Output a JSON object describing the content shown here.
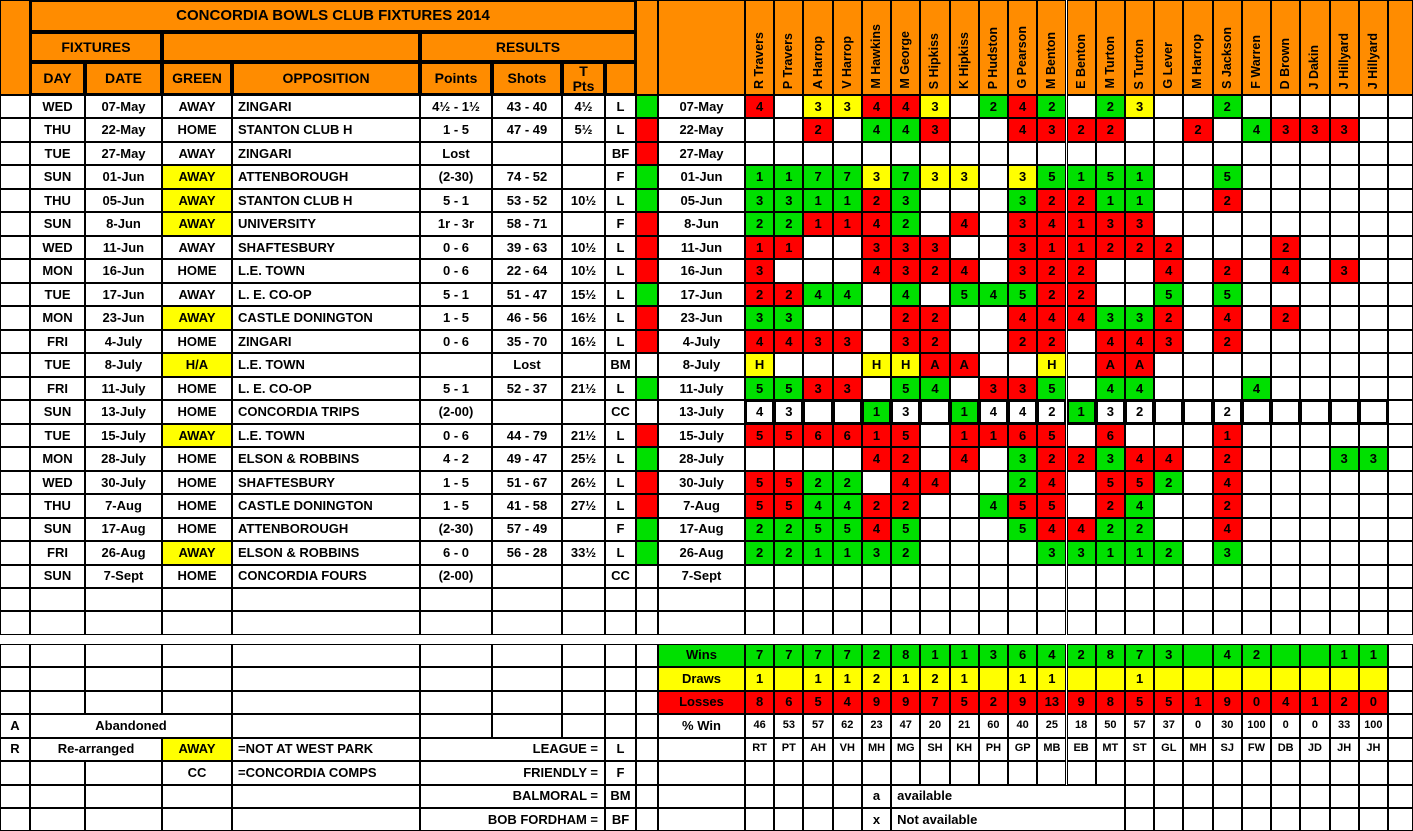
{
  "title": "CONCORDIA BOWLS CLUB FIXTURES  2014",
  "colors": {
    "orange": "#FF8C00",
    "green": "#00E000",
    "red": "#FF0000",
    "yellow": "#FFFF00",
    "white": "#FFFFFF"
  },
  "header": {
    "fixtures": "FIXTURES",
    "results": "RESULTS",
    "day": "DAY",
    "date": "DATE",
    "green": "GREEN",
    "opposition": "OPPOSITION",
    "points": "Points",
    "shots": "Shots",
    "t": "T",
    "pts": "Pts"
  },
  "players": [
    {
      "name": "R Travers",
      "initials": "RT",
      "wins": "7",
      "draws": "1",
      "losses": "8",
      "pct": "46"
    },
    {
      "name": "P Travers",
      "initials": "PT",
      "wins": "7",
      "draws": "",
      "losses": "6",
      "pct": "53"
    },
    {
      "name": "A Harrop",
      "initials": "AH",
      "wins": "7",
      "draws": "1",
      "losses": "5",
      "pct": "57"
    },
    {
      "name": "V Harrop",
      "initials": "VH",
      "wins": "7",
      "draws": "1",
      "losses": "4",
      "pct": "62"
    },
    {
      "name": "M Hawkins",
      "initials": "MH",
      "wins": "2",
      "draws": "2",
      "losses": "9",
      "pct": "23"
    },
    {
      "name": "M George",
      "initials": "MG",
      "wins": "8",
      "draws": "1",
      "losses": "9",
      "pct": "47"
    },
    {
      "name": "S Hipkiss",
      "initials": "SH",
      "wins": "1",
      "draws": "2",
      "losses": "7",
      "pct": "20"
    },
    {
      "name": "K Hipkiss",
      "initials": "KH",
      "wins": "1",
      "draws": "1",
      "losses": "5",
      "pct": "21"
    },
    {
      "name": "P Hudston",
      "initials": "PH",
      "wins": "3",
      "draws": "",
      "losses": "2",
      "pct": "60"
    },
    {
      "name": "G Pearson",
      "initials": "GP",
      "wins": "6",
      "draws": "1",
      "losses": "9",
      "pct": "40"
    },
    {
      "name": "M Benton",
      "initials": "MB",
      "wins": "4",
      "draws": "1",
      "losses": "13",
      "pct": "25"
    },
    {
      "name": "E Benton",
      "initials": "EB",
      "wins": "2",
      "draws": "",
      "losses": "9",
      "pct": "18"
    },
    {
      "name": "M Turton",
      "initials": "MT",
      "wins": "8",
      "draws": "",
      "losses": "8",
      "pct": "50"
    },
    {
      "name": "S Turton",
      "initials": "ST",
      "wins": "7",
      "draws": "1",
      "losses": "5",
      "pct": "57"
    },
    {
      "name": "G Lever",
      "initials": "GL",
      "wins": "3",
      "draws": "",
      "losses": "5",
      "pct": "37"
    },
    {
      "name": "M Harrop",
      "initials": "MH",
      "wins": "",
      "draws": "",
      "losses": "1",
      "pct": "0"
    },
    {
      "name": "S Jackson",
      "initials": "SJ",
      "wins": "4",
      "draws": "",
      "losses": "9",
      "pct": "30"
    },
    {
      "name": "F Warren",
      "initials": "FW",
      "wins": "2",
      "draws": "",
      "losses": "0",
      "pct": "100"
    },
    {
      "name": "D Brown",
      "initials": "DB",
      "wins": "",
      "draws": "",
      "losses": "4",
      "pct": "0"
    },
    {
      "name": "J Dakin",
      "initials": "JD",
      "wins": "",
      "draws": "",
      "losses": "1",
      "pct": "0"
    },
    {
      "name": "J Hillyard",
      "initials": "JH",
      "wins": "1",
      "draws": "",
      "losses": "2",
      "pct": "33"
    },
    {
      "name": "J Hillyard",
      "initials": "JH",
      "wins": "1",
      "draws": "",
      "losses": "0",
      "pct": "100"
    }
  ],
  "fixtures": [
    {
      "day": "WED",
      "date": "07-May",
      "green": "AWAY",
      "green_hl": false,
      "opposition": "ZINGARI",
      "points": "4½ - 1½",
      "shots": "43 - 40",
      "tpts": "4½",
      "code": "L",
      "status": "g",
      "bold": false,
      "cells": [
        "4r",
        "",
        "3y",
        "3y",
        "4r",
        "4r",
        "3y",
        "",
        "2g",
        "4r",
        "2g",
        "",
        "2g",
        "3y",
        "",
        "",
        "2g",
        "",
        "",
        "",
        "",
        ""
      ]
    },
    {
      "day": "THU",
      "date": "22-May",
      "green": "HOME",
      "green_hl": false,
      "opposition": "STANTON CLUB H",
      "points": "1 - 5",
      "shots": "47 - 49",
      "tpts": "5½",
      "code": "L",
      "status": "r",
      "bold": false,
      "cells": [
        "",
        "",
        "2r",
        "",
        "4g",
        "4g",
        "3r",
        "",
        "",
        "4r",
        "3r",
        "2r",
        "2r",
        "",
        "",
        "2r",
        "",
        "4g",
        "3r",
        "3r",
        "3r",
        ""
      ]
    },
    {
      "day": "TUE",
      "date": "27-May",
      "green": "AWAY",
      "green_hl": false,
      "opposition": "ZINGARI",
      "points": "Lost",
      "shots": "",
      "tpts": "",
      "code": "BF",
      "status": "r",
      "bold": false,
      "cells": [
        "",
        "",
        "",
        "",
        "",
        "",
        "",
        "",
        "",
        "",
        "",
        "",
        "",
        "",
        "",
        "",
        "",
        "",
        "",
        "",
        "",
        ""
      ]
    },
    {
      "day": "SUN",
      "date": "01-Jun",
      "green": "AWAY",
      "green_hl": true,
      "opposition": "ATTENBOROUGH",
      "points": "(2-30)",
      "shots": "74 - 52",
      "tpts": "",
      "code": "F",
      "status": "g",
      "bold": false,
      "cells": [
        "1g",
        "1g",
        "7g",
        "7g",
        "3y",
        "7g",
        "3y",
        "3y",
        "",
        "3y",
        "5g",
        "1g",
        "5g",
        "1g",
        "",
        "",
        "5g",
        "",
        "",
        "",
        "",
        ""
      ]
    },
    {
      "day": "THU",
      "date": "05-Jun",
      "green": "AWAY",
      "green_hl": true,
      "opposition": "STANTON CLUB H",
      "points": "5 - 1",
      "shots": "53 - 52",
      "tpts": "10½",
      "code": "L",
      "status": "g",
      "bold": false,
      "cells": [
        "3g",
        "3g",
        "1g",
        "1g",
        "2r",
        "3g",
        "",
        "",
        "",
        "3g",
        "2r",
        "2r",
        "1g",
        "1g",
        "",
        "",
        "2r",
        "",
        "",
        "",
        "",
        ""
      ]
    },
    {
      "day": "SUN",
      "date": "8-Jun",
      "green": "AWAY",
      "green_hl": true,
      "opposition": "UNIVERSITY",
      "points": "1r - 3r",
      "shots": "58 - 71",
      "tpts": "",
      "code": "F",
      "status": "r",
      "bold": false,
      "cells": [
        "2g",
        "2g",
        "1r",
        "1r",
        "4r",
        "2g",
        "",
        "4r",
        "",
        "3r",
        "4r",
        "1r",
        "3r",
        "3r",
        "",
        "",
        "",
        "",
        "",
        "",
        "",
        ""
      ]
    },
    {
      "day": "WED",
      "date": "11-Jun",
      "green": "AWAY",
      "green_hl": false,
      "opposition": "SHAFTESBURY",
      "points": "0 - 6",
      "shots": "39 - 63",
      "tpts": "10½",
      "code": "L",
      "status": "r",
      "bold": false,
      "cells": [
        "1r",
        "1r",
        "",
        "",
        "3r",
        "3r",
        "3r",
        "",
        "",
        "3r",
        "1r",
        "1r",
        "2r",
        "2r",
        "2r",
        "",
        "",
        "",
        "2r",
        "",
        "",
        ""
      ]
    },
    {
      "day": "MON",
      "date": "16-Jun",
      "green": "HOME",
      "green_hl": false,
      "opposition": "L.E. TOWN",
      "points": "0 - 6",
      "shots": "22 - 64",
      "tpts": "10½",
      "code": "L",
      "status": "r",
      "bold": false,
      "cells": [
        "3r",
        "",
        "",
        "",
        "4r",
        "3r",
        "2r",
        "4r",
        "",
        "3r",
        "2r",
        "2r",
        "",
        "",
        "4r",
        "",
        "2r",
        "",
        "4r",
        "",
        "3r",
        ""
      ]
    },
    {
      "day": "TUE",
      "date": "17-Jun",
      "green": "AWAY",
      "green_hl": false,
      "opposition": "L. E. CO-OP",
      "points": "5 - 1",
      "shots": "51 - 47",
      "tpts": "15½",
      "code": "L",
      "status": "g",
      "bold": false,
      "cells": [
        "2r",
        "2r",
        "4g",
        "4g",
        "",
        "4g",
        "",
        "5g",
        "4g",
        "5g",
        "2r",
        "2r",
        "",
        "",
        "5g",
        "",
        "5g",
        "",
        "",
        "",
        "",
        ""
      ]
    },
    {
      "day": "MON",
      "date": "23-Jun",
      "green": "AWAY",
      "green_hl": true,
      "opposition": "CASTLE DONINGTON",
      "points": "1 - 5",
      "shots": "46 - 56",
      "tpts": "16½",
      "code": "L",
      "status": "r",
      "bold": false,
      "cells": [
        "3g",
        "3g",
        "",
        "",
        "",
        "2r",
        "2r",
        "",
        "",
        "4r",
        "4r",
        "4r",
        "3g",
        "3g",
        "2r",
        "",
        "4r",
        "",
        "2r",
        "",
        "",
        ""
      ]
    },
    {
      "day": "FRI",
      "date": "4-July",
      "green": "HOME",
      "green_hl": false,
      "opposition": "ZINGARI",
      "points": "0 - 6",
      "shots": "35 - 70",
      "tpts": "16½",
      "code": "L",
      "status": "r",
      "bold": false,
      "cells": [
        "4r",
        "4r",
        "3r",
        "3r",
        "",
        "3r",
        "2r",
        "",
        "",
        "2r",
        "2r",
        "",
        "4r",
        "4r",
        "3r",
        "",
        "2r",
        "",
        "",
        "",
        "",
        ""
      ]
    },
    {
      "day": "TUE",
      "date": "8-July",
      "green": "H/A",
      "green_hl": true,
      "opposition": "L.E. TOWN",
      "points": "",
      "shots": "Lost",
      "tpts": "",
      "code": "BM",
      "status": "",
      "bold": false,
      "cells": [
        "Hy",
        "",
        "",
        "",
        "Hy",
        "Hy",
        "Ar",
        "Ar",
        "",
        "",
        "Hy",
        "",
        "Ar",
        "Ar",
        "",
        "",
        "",
        "",
        "",
        "",
        "",
        ""
      ]
    },
    {
      "day": "FRI",
      "date": "11-July",
      "green": "HOME",
      "green_hl": false,
      "opposition": "L. E. CO-OP",
      "points": "5 - 1",
      "shots": "52 - 37",
      "tpts": "21½",
      "code": "L",
      "status": "g",
      "bold": false,
      "cells": [
        "5g",
        "5g",
        "3r",
        "3r",
        "",
        "5g",
        "4g",
        "",
        "3r",
        "3r",
        "5g",
        "",
        "4g",
        "4g",
        "",
        "",
        "",
        "4g",
        "",
        "",
        "",
        ""
      ]
    },
    {
      "day": "SUN",
      "date": "13-July",
      "green": "HOME",
      "green_hl": false,
      "opposition": "CONCORDIA TRIPS",
      "points": "(2-00)",
      "shots": "",
      "tpts": "",
      "code": "CC",
      "status": "",
      "bold": true,
      "cells": [
        "4w",
        "3w",
        "",
        "",
        "1g",
        "3w",
        "",
        "1g",
        "4w",
        "4w",
        "2w",
        "1g",
        "3w",
        "2w",
        "",
        "",
        "2w",
        "",
        "",
        "",
        "",
        ""
      ]
    },
    {
      "day": "TUE",
      "date": "15-July",
      "green": "AWAY",
      "green_hl": true,
      "opposition": "L.E. TOWN",
      "points": "0 - 6",
      "shots": "44 - 79",
      "tpts": "21½",
      "code": "L",
      "status": "r",
      "bold": false,
      "cells": [
        "5r",
        "5r",
        "6r",
        "6r",
        "1r",
        "5r",
        "",
        "1r",
        "1r",
        "6r",
        "5r",
        "",
        "6r",
        "",
        "",
        "",
        "1r",
        "",
        "",
        "",
        "",
        ""
      ]
    },
    {
      "day": "MON",
      "date": "28-July",
      "green": "HOME",
      "green_hl": false,
      "opposition": "ELSON & ROBBINS",
      "points": "4 - 2",
      "shots": "49 - 47",
      "tpts": "25½",
      "code": "L",
      "status": "g",
      "bold": false,
      "cells": [
        "",
        "",
        "",
        "",
        "4r",
        "2r",
        "",
        "4r",
        "",
        "3g",
        "2r",
        "2r",
        "3g",
        "4r",
        "4r",
        "",
        "2r",
        "",
        "",
        "",
        "3g",
        "3g"
      ]
    },
    {
      "day": "WED",
      "date": "30-July",
      "green": "HOME",
      "green_hl": false,
      "opposition": "SHAFTESBURY",
      "points": "1 - 5",
      "shots": "51 - 67",
      "tpts": "26½",
      "code": "L",
      "status": "r",
      "bold": false,
      "cells": [
        "5r",
        "5r",
        "2g",
        "2g",
        "",
        "4r",
        "4r",
        "",
        "",
        "2g",
        "4r",
        "",
        "5r",
        "5r",
        "2g",
        "",
        "4r",
        "",
        "",
        "",
        "",
        ""
      ]
    },
    {
      "day": "THU",
      "date": "7-Aug",
      "green": "HOME",
      "green_hl": false,
      "opposition": "CASTLE DONINGTON",
      "points": "1 - 5",
      "shots": "41 - 58",
      "tpts": "27½",
      "code": "L",
      "status": "r",
      "bold": false,
      "cells": [
        "5r",
        "5r",
        "4g",
        "4g",
        "2r",
        "2r",
        "",
        "",
        "4g",
        "5r",
        "5r",
        "",
        "2r",
        "4g",
        "",
        "",
        "2r",
        "",
        "",
        "",
        "",
        ""
      ]
    },
    {
      "day": "SUN",
      "date": "17-Aug",
      "green": "HOME",
      "green_hl": false,
      "opposition": "ATTENBOROUGH",
      "points": "(2-30)",
      "shots": "57 - 49",
      "tpts": "",
      "code": "F",
      "status": "g",
      "bold": false,
      "cells": [
        "2g",
        "2g",
        "5g",
        "5g",
        "4r",
        "5g",
        "",
        "",
        "",
        "5g",
        "4r",
        "4r",
        "2g",
        "2g",
        "",
        "",
        "4r",
        "",
        "",
        "",
        "",
        ""
      ]
    },
    {
      "day": "FRI",
      "date": "26-Aug",
      "green": "AWAY",
      "green_hl": true,
      "opposition": "ELSON & ROBBINS",
      "points": "6 - 0",
      "shots": "56 - 28",
      "tpts": "33½",
      "code": "L",
      "status": "g",
      "bold": false,
      "cells": [
        "2g",
        "2g",
        "1g",
        "1g",
        "3g",
        "2g",
        "",
        "",
        "",
        "",
        "3g",
        "3g",
        "1g",
        "1g",
        "2g",
        "",
        "3g",
        "",
        "",
        "",
        "",
        ""
      ]
    },
    {
      "day": "SUN",
      "date": "7-Sept",
      "green": "HOME",
      "green_hl": false,
      "opposition": "CONCORDIA FOURS",
      "points": "(2-00)",
      "shots": "",
      "tpts": "",
      "code": "CC",
      "status": "",
      "bold": false,
      "cells": [
        "",
        "",
        "",
        "",
        "",
        "",
        "",
        "",
        "",
        "",
        "",
        "",
        "",
        "",
        "",
        "",
        "",
        "",
        "",
        "",
        "",
        ""
      ]
    }
  ],
  "summary": {
    "wins_label": "Wins",
    "draws_label": "Draws",
    "losses_label": "Losses",
    "pct_label": "% Win"
  },
  "legend": {
    "abandoned_letter": "A",
    "abandoned": "Abandoned",
    "rearranged_letter": "R",
    "rearranged": "Re-arranged",
    "away": "AWAY",
    "away_note": "=NOT AT WEST PARK",
    "cc": "CC",
    "cc_note": "=CONCORDIA COMPS",
    "league_label": "LEAGUE =",
    "league_code": "L",
    "friendly_label": "FRIENDLY =",
    "friendly_code": "F",
    "balmoral_label": "BALMORAL =",
    "balmoral_code": "BM",
    "bob_label": "BOB FORDHAM =",
    "bob_code": "BF",
    "avail_letter": "a",
    "avail_label": "available",
    "navail_letter": "x",
    "navail_label": "Not available"
  }
}
